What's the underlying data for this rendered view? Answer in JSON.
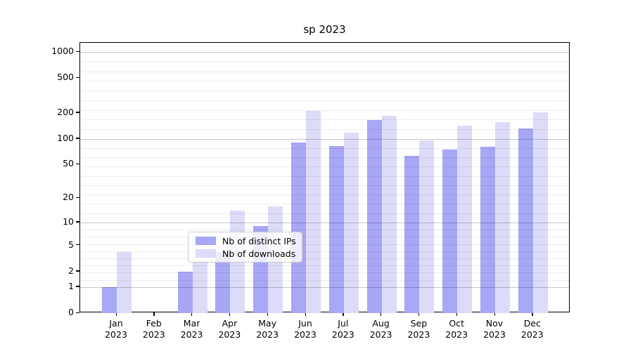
{
  "title": "sp 2023",
  "chart_data": {
    "type": "bar",
    "title": "sp 2023",
    "xlabel": "",
    "ylabel": "",
    "scale": "log10(1+v)",
    "year": "2023",
    "categories": [
      "Jan",
      "Feb",
      "Mar",
      "Apr",
      "May",
      "Jun",
      "Jul",
      "Aug",
      "Sep",
      "Oct",
      "Nov",
      "Dec"
    ],
    "series": [
      {
        "name": "Nb of distinct IPs",
        "color": "#a7a7f5",
        "values": [
          1,
          0,
          2,
          4,
          9,
          90,
          83,
          165,
          63,
          75,
          81,
          131
        ]
      },
      {
        "name": "Nb of downloads",
        "color": "#dcdcf9",
        "values": [
          4,
          0,
          3,
          14,
          16,
          210,
          118,
          184,
          96,
          141,
          155,
          202
        ]
      }
    ],
    "y_ticks": [
      0,
      1,
      2,
      5,
      10,
      20,
      50,
      100,
      200,
      500,
      1000
    ],
    "major_gridlines": [
      1,
      10,
      100,
      1000
    ],
    "ylim": [
      0,
      1280
    ],
    "grid": true,
    "legend_position": "lower center"
  },
  "colors": {
    "background": "#ffffff",
    "axis": "#000000",
    "major_grid": "#c9c9c9",
    "minor_grid": "#ededed",
    "legend_border": "#cccccc"
  }
}
